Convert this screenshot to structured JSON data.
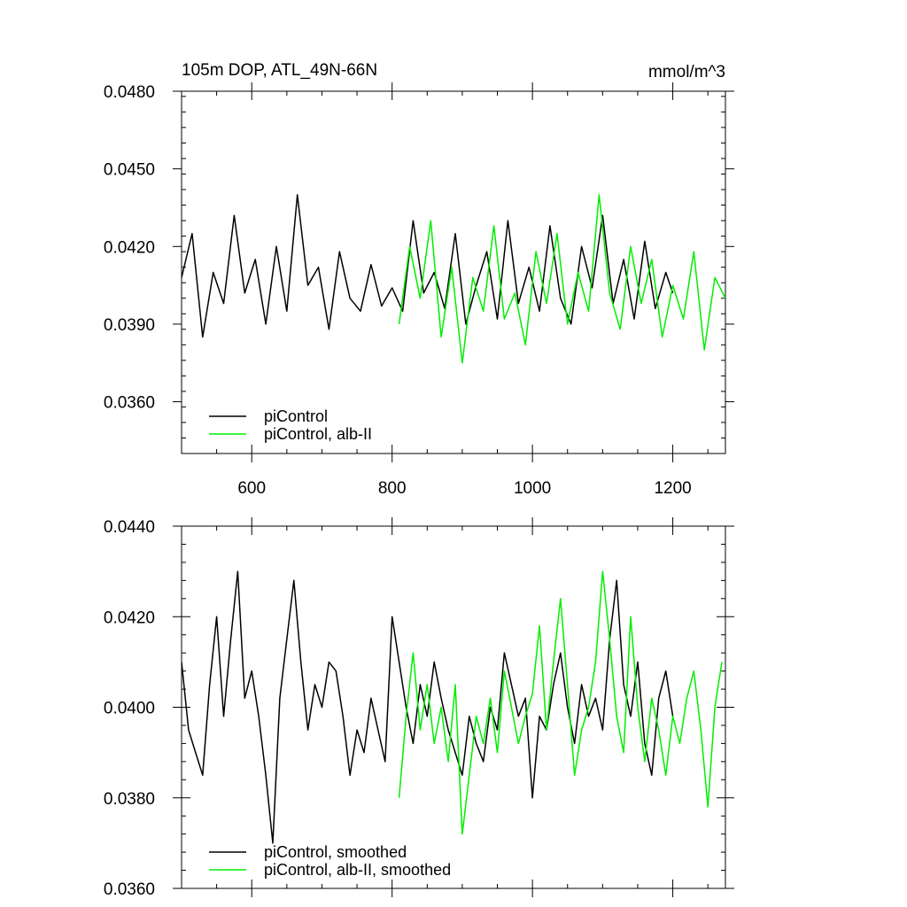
{
  "chart_data": [
    {
      "type": "line",
      "title": "105m DOP, ATL_49N-66N",
      "units": "mmol/m^3",
      "xlim": [
        500,
        1275
      ],
      "ylim": [
        0.034,
        0.048
      ],
      "x_ticks": [
        600,
        800,
        1000,
        1200
      ],
      "x_tick_labels": [
        "600",
        "800",
        "1000",
        "1200"
      ],
      "y_ticks": [
        0.036,
        0.039,
        0.042,
        0.045,
        0.048
      ],
      "y_tick_labels": [
        "0.0360",
        "0.0390",
        "0.0420",
        "0.0450",
        "0.0480"
      ],
      "grid": false,
      "legend_position": "bottom-left",
      "series": [
        {
          "name": "piControl",
          "color": "#000000",
          "x": [
            500,
            515,
            530,
            545,
            560,
            575,
            590,
            605,
            620,
            635,
            650,
            665,
            680,
            695,
            710,
            725,
            740,
            755,
            770,
            785,
            800,
            815,
            830,
            845,
            860,
            875,
            890,
            905,
            920,
            935,
            950,
            965,
            980,
            995,
            1010,
            1025,
            1040,
            1055,
            1070,
            1085,
            1100,
            1115,
            1130,
            1145,
            1160,
            1175,
            1190,
            1200
          ],
          "values": [
            0.0408,
            0.0425,
            0.0385,
            0.041,
            0.0398,
            0.0432,
            0.0402,
            0.0415,
            0.039,
            0.042,
            0.0395,
            0.044,
            0.0405,
            0.0412,
            0.0388,
            0.0418,
            0.04,
            0.0395,
            0.0413,
            0.0397,
            0.0404,
            0.0395,
            0.043,
            0.0402,
            0.041,
            0.0396,
            0.0425,
            0.039,
            0.0405,
            0.0418,
            0.0392,
            0.043,
            0.0398,
            0.0412,
            0.0395,
            0.0428,
            0.04,
            0.039,
            0.042,
            0.0404,
            0.0432,
            0.0398,
            0.0415,
            0.0392,
            0.0422,
            0.0396,
            0.041,
            0.0402
          ]
        },
        {
          "name": "piControl, alb-II",
          "color": "#00ee00",
          "x": [
            810,
            825,
            840,
            855,
            870,
            885,
            900,
            915,
            930,
            945,
            960,
            975,
            990,
            1005,
            1020,
            1035,
            1050,
            1065,
            1080,
            1095,
            1110,
            1125,
            1140,
            1155,
            1170,
            1185,
            1200,
            1215,
            1230,
            1245,
            1260,
            1275
          ],
          "values": [
            0.039,
            0.042,
            0.04,
            0.043,
            0.0385,
            0.0412,
            0.0375,
            0.0408,
            0.0395,
            0.0428,
            0.0392,
            0.0402,
            0.0382,
            0.0418,
            0.0398,
            0.0425,
            0.039,
            0.041,
            0.0395,
            0.044,
            0.0402,
            0.0388,
            0.042,
            0.0398,
            0.0415,
            0.0385,
            0.0405,
            0.0392,
            0.0418,
            0.038,
            0.0408,
            0.04
          ]
        }
      ]
    },
    {
      "type": "line",
      "xlim": [
        500,
        1275
      ],
      "ylim": [
        0.036,
        0.044
      ],
      "x_ticks": [
        600,
        800,
        1000,
        1200
      ],
      "y_ticks": [
        0.036,
        0.038,
        0.04,
        0.042,
        0.044
      ],
      "y_tick_labels": [
        "0.0360",
        "0.0380",
        "0.0400",
        "0.0420",
        "0.0440"
      ],
      "grid": false,
      "legend_position": "bottom-left",
      "series": [
        {
          "name": "piControl, smoothed",
          "color": "#000000",
          "x": [
            500,
            510,
            520,
            530,
            540,
            550,
            560,
            570,
            580,
            590,
            600,
            610,
            620,
            630,
            640,
            650,
            660,
            670,
            680,
            690,
            700,
            710,
            720,
            730,
            740,
            750,
            760,
            770,
            780,
            790,
            800,
            810,
            820,
            830,
            840,
            850,
            860,
            870,
            880,
            890,
            900,
            910,
            920,
            930,
            940,
            950,
            960,
            970,
            980,
            990,
            1000,
            1010,
            1020,
            1030,
            1040,
            1050,
            1060,
            1070,
            1080,
            1090,
            1100,
            1110,
            1120,
            1130,
            1140,
            1150,
            1160,
            1170,
            1180,
            1190,
            1200
          ],
          "values": [
            0.041,
            0.0395,
            0.039,
            0.0385,
            0.0405,
            0.042,
            0.0398,
            0.0415,
            0.043,
            0.0402,
            0.0408,
            0.0398,
            0.0385,
            0.037,
            0.0402,
            0.0415,
            0.0428,
            0.041,
            0.0395,
            0.0405,
            0.04,
            0.041,
            0.0408,
            0.0398,
            0.0385,
            0.0395,
            0.039,
            0.0402,
            0.0395,
            0.0388,
            0.042,
            0.041,
            0.04,
            0.0392,
            0.0405,
            0.0398,
            0.041,
            0.0402,
            0.0395,
            0.039,
            0.0385,
            0.0398,
            0.0392,
            0.0388,
            0.04,
            0.0395,
            0.0412,
            0.0405,
            0.0398,
            0.0402,
            0.038,
            0.0398,
            0.0395,
            0.0405,
            0.0412,
            0.04,
            0.0392,
            0.0405,
            0.0398,
            0.0402,
            0.0395,
            0.0415,
            0.0428,
            0.0405,
            0.0398,
            0.041,
            0.0392,
            0.0385,
            0.0402,
            0.0408,
            0.0398
          ]
        },
        {
          "name": "piControl, alb-II, smoothed",
          "color": "#00ee00",
          "x": [
            810,
            820,
            830,
            840,
            850,
            860,
            870,
            880,
            890,
            900,
            910,
            920,
            930,
            940,
            950,
            960,
            970,
            980,
            990,
            1000,
            1010,
            1020,
            1030,
            1040,
            1050,
            1060,
            1070,
            1080,
            1090,
            1100,
            1110,
            1120,
            1130,
            1140,
            1150,
            1160,
            1170,
            1180,
            1190,
            1200,
            1210,
            1220,
            1230,
            1240,
            1250,
            1260,
            1270
          ],
          "values": [
            0.038,
            0.0398,
            0.0412,
            0.0395,
            0.0405,
            0.0392,
            0.04,
            0.0388,
            0.0405,
            0.0372,
            0.0385,
            0.0398,
            0.0392,
            0.0402,
            0.039,
            0.0408,
            0.04,
            0.0392,
            0.0398,
            0.0403,
            0.0418,
            0.0395,
            0.041,
            0.0424,
            0.0405,
            0.0385,
            0.0395,
            0.04,
            0.041,
            0.043,
            0.0415,
            0.0398,
            0.039,
            0.042,
            0.04,
            0.0388,
            0.0402,
            0.0395,
            0.0385,
            0.0398,
            0.0392,
            0.0402,
            0.0408,
            0.0395,
            0.0378,
            0.04,
            0.041
          ]
        }
      ]
    }
  ]
}
